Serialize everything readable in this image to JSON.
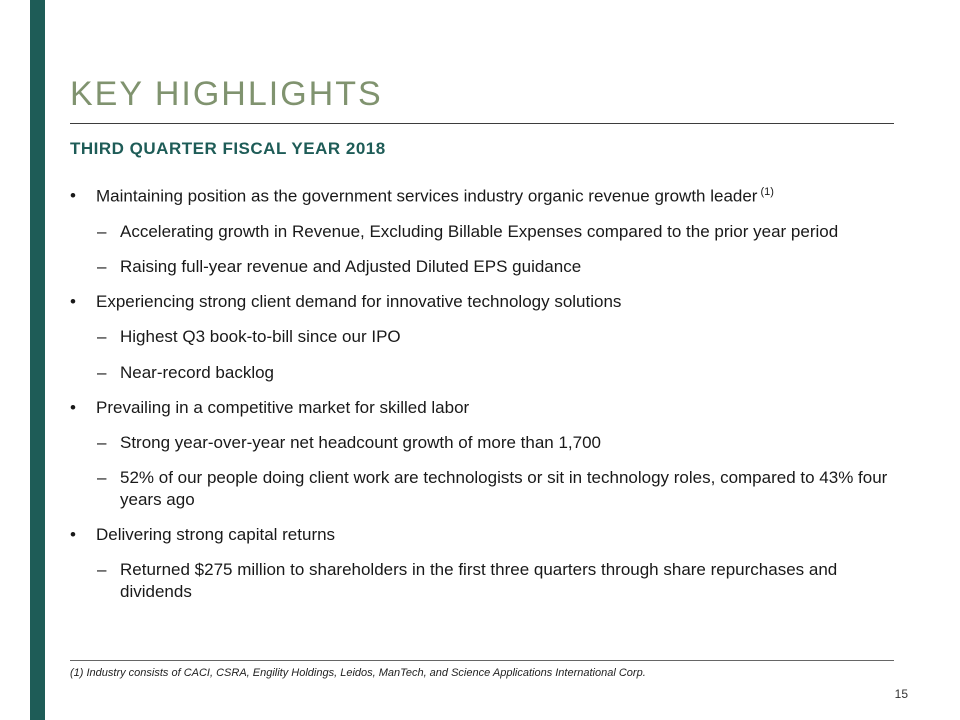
{
  "slide": {
    "title": "KEY HIGHLIGHTS",
    "subtitle": "THIRD QUARTER FISCAL YEAR 2018",
    "footnote": "(1) Industry consists of CACI, CSRA, Engility Holdings, Leidos, ManTech, and Science Applications International Corp.",
    "page_number": "15"
  },
  "markers": {
    "level1": "•",
    "level2": "–"
  },
  "bullets": [
    {
      "level": 1,
      "text": "Maintaining position as the government services industry organic revenue growth leader",
      "superscript": "(1)"
    },
    {
      "level": 2,
      "text": "Accelerating growth in Revenue, Excluding Billable Expenses compared to the prior year period"
    },
    {
      "level": 2,
      "text": "Raising full-year revenue and Adjusted Diluted EPS guidance"
    },
    {
      "level": 1,
      "text": "Experiencing strong client demand for innovative technology solutions"
    },
    {
      "level": 2,
      "text": "Highest Q3 book-to-bill since our IPO"
    },
    {
      "level": 2,
      "text": "Near-record backlog"
    },
    {
      "level": 1,
      "text": "Prevailing in a competitive market for skilled labor"
    },
    {
      "level": 2,
      "text": "Strong year-over-year net headcount growth of more than 1,700"
    },
    {
      "level": 2,
      "text": "52% of our people doing client work are technologists or sit in technology roles, compared to 43% four years ago"
    },
    {
      "level": 1,
      "text": "Delivering strong capital returns"
    },
    {
      "level": 2,
      "text": "Returned $275 million to shareholders in the first three quarters through share repurchases and dividends"
    }
  ],
  "colors": {
    "accent_teal": "#1E5C57",
    "title_green": "#80936F",
    "body_text": "#191919"
  }
}
